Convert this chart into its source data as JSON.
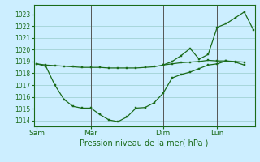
{
  "background_color": "#cceeff",
  "grid_color": "#99cccc",
  "line_color": "#1a6b1a",
  "marker_color": "#1a6b1a",
  "xlabel_text": "Pression niveau de la mer( hPa )",
  "ylim": [
    1013.5,
    1023.8
  ],
  "yticks": [
    1014,
    1015,
    1016,
    1017,
    1018,
    1019,
    1020,
    1021,
    1022,
    1023
  ],
  "xtick_labels": [
    "Sam",
    "Mar",
    "Dim",
    "Lun"
  ],
  "xtick_positions": [
    0,
    36,
    84,
    120
  ],
  "xlim": [
    -2,
    145
  ],
  "vlines_x": [
    0,
    36,
    84,
    120
  ],
  "series1_x": [
    0,
    6,
    12,
    18,
    24,
    30,
    36,
    42,
    48,
    54,
    60,
    66,
    72,
    78,
    84,
    90,
    96,
    102,
    108,
    114,
    120,
    126,
    132,
    138
  ],
  "series1_y": [
    1018.8,
    1018.7,
    1018.65,
    1018.6,
    1018.55,
    1018.5,
    1018.5,
    1018.5,
    1018.45,
    1018.45,
    1018.45,
    1018.45,
    1018.5,
    1018.55,
    1018.7,
    1018.8,
    1018.9,
    1018.95,
    1019.0,
    1019.1,
    1019.05,
    1019.05,
    1019.0,
    1018.95
  ],
  "series2_x": [
    0,
    6,
    12,
    18,
    24,
    30,
    36,
    42,
    48,
    54,
    60,
    66,
    72,
    78,
    84,
    90,
    96,
    102,
    108,
    114,
    120,
    126,
    132,
    138
  ],
  "series2_y": [
    1018.8,
    1018.6,
    1017.0,
    1015.8,
    1015.2,
    1015.05,
    1015.05,
    1014.5,
    1014.05,
    1013.9,
    1014.3,
    1015.05,
    1015.1,
    1015.5,
    1016.3,
    1017.6,
    1017.9,
    1018.1,
    1018.4,
    1018.7,
    1018.8,
    1019.05,
    1018.95,
    1018.7
  ],
  "series3_x": [
    84,
    90,
    96,
    102,
    108,
    114,
    120,
    126,
    132,
    138,
    144
  ],
  "series3_y": [
    1018.7,
    1019.0,
    1019.5,
    1020.1,
    1019.2,
    1019.6,
    1021.9,
    1022.2,
    1022.7,
    1023.2,
    1021.7
  ]
}
